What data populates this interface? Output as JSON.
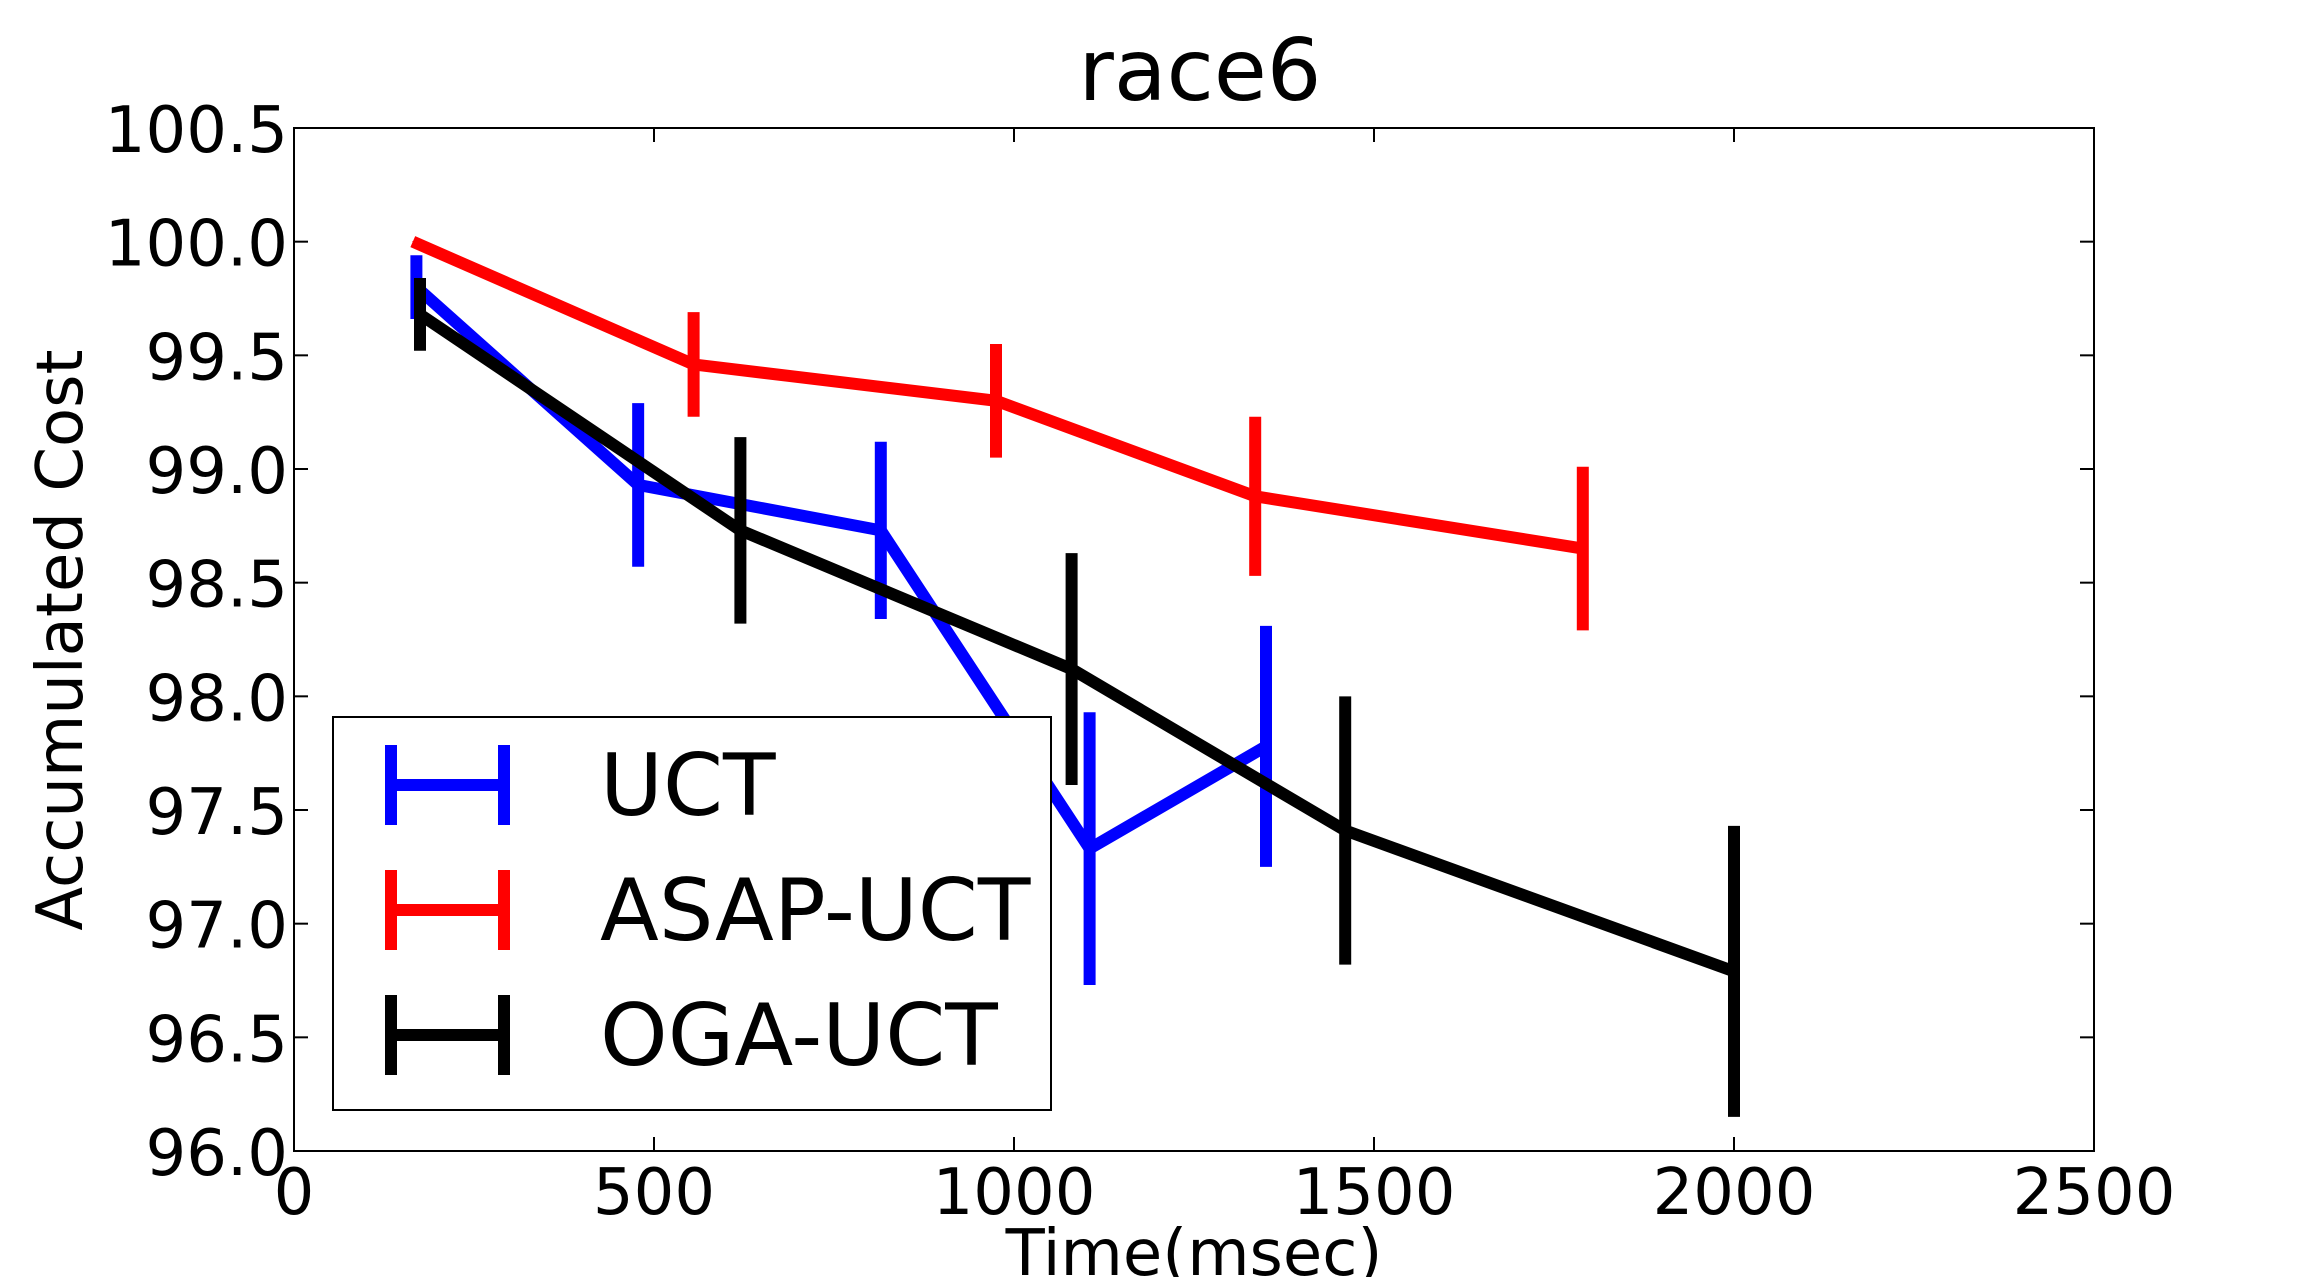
{
  "chart_data": {
    "type": "line",
    "title": "race6",
    "xlabel": "Time(msec)",
    "ylabel": "Accumulated Cost",
    "xlim": [
      0,
      2500
    ],
    "ylim": [
      96.0,
      100.5
    ],
    "xticks": [
      0,
      500,
      1000,
      1500,
      2000,
      2500
    ],
    "yticks": [
      96.0,
      96.5,
      97.0,
      97.5,
      98.0,
      98.5,
      99.0,
      99.5,
      100.0,
      100.5
    ],
    "xtick_labels": [
      "0",
      "500",
      "1000",
      "1500",
      "2000",
      "2500"
    ],
    "ytick_labels": [
      "96.0",
      "96.5",
      "97.0",
      "97.5",
      "98.0",
      "98.5",
      "99.0",
      "99.5",
      "100.0",
      "100.5"
    ],
    "grid": false,
    "legend_position": "lower-left",
    "series": [
      {
        "name": "UCT",
        "color": "#0000ff",
        "points": [
          {
            "x": 170,
            "y": 99.8,
            "yerr": 0.14
          },
          {
            "x": 478,
            "y": 98.93,
            "yerr": 0.36
          },
          {
            "x": 815,
            "y": 98.73,
            "yerr": 0.39
          },
          {
            "x": 1105,
            "y": 97.33,
            "yerr": 0.6
          },
          {
            "x": 1350,
            "y": 97.78,
            "yerr": 0.53
          }
        ]
      },
      {
        "name": "ASAP-UCT",
        "color": "#ff0000",
        "points": [
          {
            "x": 165,
            "y": 100.0,
            "yerr": 0.0
          },
          {
            "x": 555,
            "y": 99.46,
            "yerr": 0.23
          },
          {
            "x": 975,
            "y": 99.3,
            "yerr": 0.25
          },
          {
            "x": 1335,
            "y": 98.88,
            "yerr": 0.35
          },
          {
            "x": 1790,
            "y": 98.65,
            "yerr": 0.36
          }
        ]
      },
      {
        "name": "OGA-UCT",
        "color": "#000000",
        "points": [
          {
            "x": 175,
            "y": 99.68,
            "yerr": 0.16
          },
          {
            "x": 620,
            "y": 98.73,
            "yerr": 0.41
          },
          {
            "x": 1080,
            "y": 98.12,
            "yerr": 0.51
          },
          {
            "x": 1460,
            "y": 97.41,
            "yerr": 0.59
          },
          {
            "x": 2000,
            "y": 96.79,
            "yerr": 0.64
          }
        ]
      }
    ]
  }
}
